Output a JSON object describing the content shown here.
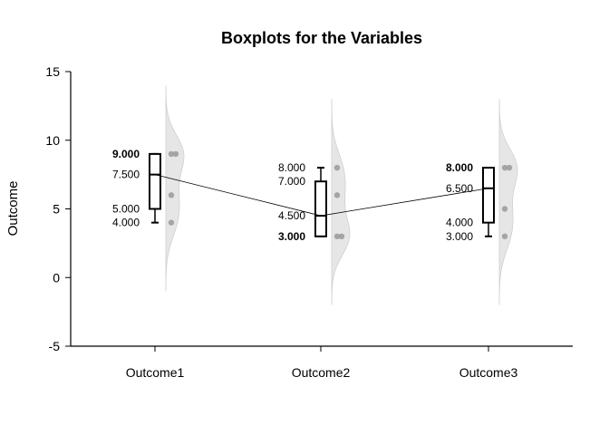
{
  "chart_data": {
    "type": "boxplot",
    "title": "Boxplots for the Variables",
    "xlabel": "",
    "ylabel": "Outcome",
    "ylim": [
      -5,
      15
    ],
    "yticks": [
      -5,
      0,
      5,
      10,
      15
    ],
    "categories": [
      "Outcome1",
      "Outcome2",
      "Outcome3"
    ],
    "boxes": [
      {
        "name": "Outcome1",
        "whisker_low": 4,
        "q1": 5,
        "median": 7.5,
        "q3": 9,
        "whisker_high": 9,
        "points": [
          4,
          6,
          9,
          9
        ],
        "labels": [
          {
            "text": "9.000",
            "value": 9,
            "bold": true
          },
          {
            "text": "7.500",
            "value": 7.5,
            "bold": false
          },
          {
            "text": "5.000",
            "value": 5,
            "bold": false
          },
          {
            "text": "4.000",
            "value": 4,
            "bold": false
          }
        ]
      },
      {
        "name": "Outcome2",
        "whisker_low": 3,
        "q1": 3,
        "median": 4.5,
        "q3": 7,
        "whisker_high": 8,
        "points": [
          3,
          3,
          6,
          8
        ],
        "labels": [
          {
            "text": "8.000",
            "value": 8,
            "bold": false
          },
          {
            "text": "7.000",
            "value": 7,
            "bold": false
          },
          {
            "text": "4.500",
            "value": 4.5,
            "bold": false
          },
          {
            "text": "3.000",
            "value": 3,
            "bold": true
          }
        ]
      },
      {
        "name": "Outcome3",
        "whisker_low": 3,
        "q1": 4,
        "median": 6.5,
        "q3": 8,
        "whisker_high": 8,
        "points": [
          3,
          5,
          8,
          8
        ],
        "labels": [
          {
            "text": "8.000",
            "value": 8,
            "bold": true
          },
          {
            "text": "6.500",
            "value": 6.5,
            "bold": false
          },
          {
            "text": "4.000",
            "value": 4,
            "bold": false
          },
          {
            "text": "3.000",
            "value": 3,
            "bold": false
          }
        ]
      }
    ],
    "median_line": true,
    "violin_fill": "#e6e6e6",
    "point_color": "#999999",
    "grid": false
  }
}
